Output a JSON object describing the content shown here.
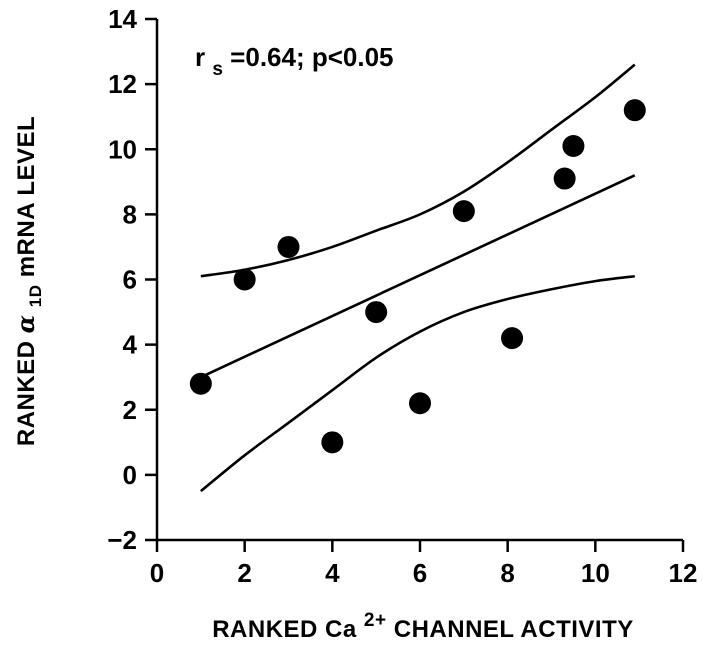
{
  "chart_data": {
    "type": "scatter",
    "title": "",
    "annotation": {
      "r_symbol": "r",
      "r_subscript": "s",
      "text": " =0.64;  p<0.05"
    },
    "xlabel": {
      "prefix": "RANKED  Ca",
      "superscript": "2+",
      "suffix": " CHANNEL  ACTIVITY"
    },
    "ylabel": {
      "prefix": "RANKED  ",
      "symbol": "α",
      "subscript": "1D",
      "suffix": "  mRNA  LEVEL"
    },
    "xlim": [
      0,
      12
    ],
    "ylim": [
      -2,
      14
    ],
    "xticks": [
      0,
      2,
      4,
      6,
      8,
      10,
      12
    ],
    "yticks": [
      -2,
      0,
      2,
      4,
      6,
      8,
      10,
      12,
      14
    ],
    "xtick_labels": [
      "0",
      "2",
      "4",
      "6",
      "8",
      "10",
      "12"
    ],
    "ytick_labels": [
      "−2",
      "0",
      "2",
      "4",
      "6",
      "8",
      "10",
      "12",
      "14"
    ],
    "points": [
      {
        "x": 1.0,
        "y": 2.8
      },
      {
        "x": 2.0,
        "y": 6.0
      },
      {
        "x": 3.0,
        "y": 7.0
      },
      {
        "x": 4.0,
        "y": 1.0
      },
      {
        "x": 5.0,
        "y": 5.0
      },
      {
        "x": 6.0,
        "y": 2.2
      },
      {
        "x": 7.0,
        "y": 8.1
      },
      {
        "x": 8.1,
        "y": 4.2
      },
      {
        "x": 9.3,
        "y": 9.1
      },
      {
        "x": 9.5,
        "y": 10.1
      },
      {
        "x": 10.9,
        "y": 11.2
      }
    ],
    "regression_line": {
      "x": [
        1.0,
        10.9
      ],
      "y": [
        3.0,
        9.2
      ]
    },
    "confidence_band_upper": {
      "x": [
        1.0,
        2.0,
        3.0,
        4.0,
        5.0,
        6.0,
        7.0,
        8.0,
        9.0,
        10.0,
        10.9
      ],
      "y": [
        6.1,
        6.3,
        6.6,
        7.0,
        7.5,
        8.0,
        8.7,
        9.6,
        10.6,
        11.6,
        12.6
      ]
    },
    "confidence_band_lower": {
      "x": [
        1.0,
        2.0,
        3.0,
        4.0,
        5.0,
        6.0,
        7.0,
        8.0,
        9.0,
        10.0,
        10.9
      ],
      "y": [
        -0.5,
        0.6,
        1.6,
        2.6,
        3.6,
        4.4,
        5.0,
        5.4,
        5.7,
        5.95,
        6.1
      ]
    },
    "grid": false,
    "legend": "none"
  }
}
